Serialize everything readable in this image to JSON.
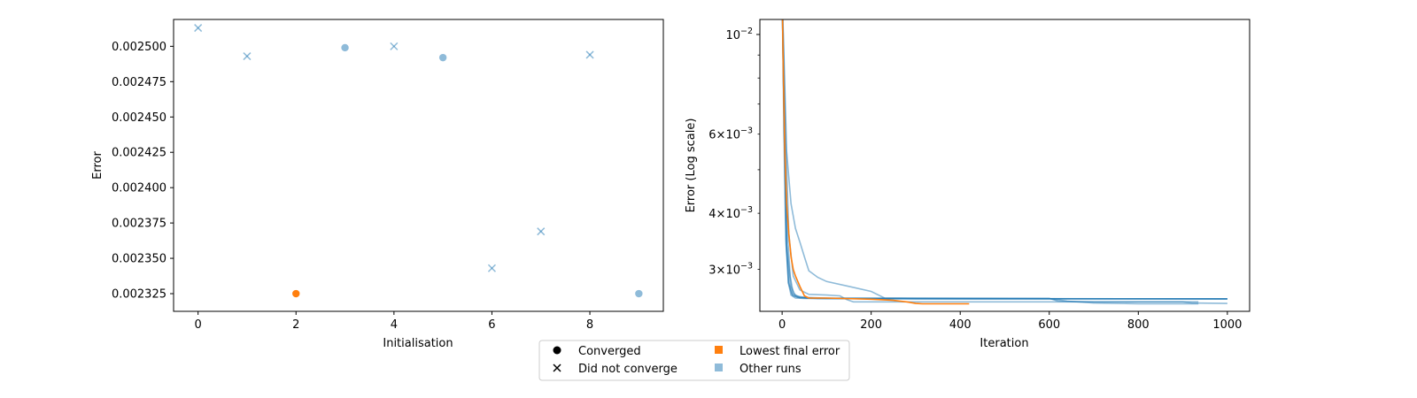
{
  "colors": {
    "highlight": "#ff7f0e",
    "other": "#1f77b4",
    "other_alpha": 0.5
  },
  "chart_data": [
    {
      "type": "scatter",
      "xlabel": "Initialisation",
      "ylabel": "Error",
      "xlim": [
        -0.5,
        9.5
      ],
      "ylim": [
        0.0023125,
        0.002519
      ],
      "xticks": [
        0,
        2,
        4,
        6,
        8
      ],
      "xtick_labels": [
        "0",
        "2",
        "4",
        "6",
        "8"
      ],
      "yticks": [
        0.002325,
        0.00235,
        0.002375,
        0.0024,
        0.002425,
        0.00245,
        0.002475,
        0.0025
      ],
      "ytick_labels": [
        "0.002325",
        "0.002350",
        "0.002375",
        "0.002400",
        "0.002425",
        "0.002450",
        "0.002475",
        "0.002500"
      ],
      "points": [
        {
          "x": 0,
          "y": 0.002513,
          "marker": "x",
          "group": "other"
        },
        {
          "x": 1,
          "y": 0.002493,
          "marker": "x",
          "group": "other"
        },
        {
          "x": 2,
          "y": 0.002325,
          "marker": "o",
          "group": "lowest"
        },
        {
          "x": 3,
          "y": 0.002499,
          "marker": "o",
          "group": "other"
        },
        {
          "x": 4,
          "y": 0.0025,
          "marker": "x",
          "group": "other"
        },
        {
          "x": 5,
          "y": 0.002492,
          "marker": "o",
          "group": "other"
        },
        {
          "x": 6,
          "y": 0.002343,
          "marker": "x",
          "group": "other"
        },
        {
          "x": 7,
          "y": 0.002369,
          "marker": "x",
          "group": "other"
        },
        {
          "x": 8,
          "y": 0.002494,
          "marker": "x",
          "group": "other"
        },
        {
          "x": 9,
          "y": 0.002325,
          "marker": "o",
          "group": "other"
        }
      ]
    },
    {
      "type": "line",
      "xlabel": "Iteration",
      "ylabel": "Error (Log scale)",
      "yscale": "log",
      "xlim": [
        -50,
        1050
      ],
      "ylim": [
        0.00242,
        0.0108
      ],
      "xticks": [
        0,
        200,
        400,
        600,
        800,
        1000
      ],
      "xtick_labels": [
        "0",
        "200",
        "400",
        "600",
        "800",
        "1000"
      ],
      "major_yticks": [
        {
          "value": 0.01,
          "base": "10",
          "exp": "−2"
        }
      ],
      "minor_yticks": [
        {
          "value": 0.003,
          "mant": "3",
          "base": "10",
          "exp": "−3",
          "labeled": true
        },
        {
          "value": 0.004,
          "mant": "4",
          "base": "10",
          "exp": "−3",
          "labeled": true
        },
        {
          "value": 0.005,
          "labeled": false
        },
        {
          "value": 0.006,
          "mant": "6",
          "base": "10",
          "exp": "−3",
          "labeled": true
        },
        {
          "value": 0.007,
          "labeled": false
        },
        {
          "value": 0.008,
          "labeled": false
        },
        {
          "value": 0.009,
          "labeled": false
        }
      ],
      "series": [
        {
          "group": "other",
          "x": [
            0,
            5,
            10,
            14,
            20,
            30,
            50,
            100,
            300,
            1000
          ],
          "y": [
            0.0125,
            0.006,
            0.0034,
            0.0028,
            0.00263,
            0.00259,
            0.002585,
            0.002582,
            0.00258,
            0.00258
          ]
        },
        {
          "group": "other",
          "x": [
            0,
            6,
            12,
            18,
            25,
            40,
            70,
            150,
            500,
            1000
          ],
          "y": [
            0.0125,
            0.0058,
            0.0036,
            0.0029,
            0.00265,
            0.0026,
            0.002588,
            0.002585,
            0.002582,
            0.00258
          ]
        },
        {
          "group": "other",
          "x": [
            0,
            4,
            8,
            14,
            22,
            35,
            60,
            120,
            400,
            1000
          ],
          "y": [
            0.0125,
            0.0062,
            0.0035,
            0.0028,
            0.00264,
            0.0026,
            0.002588,
            0.002584,
            0.002581,
            0.00258
          ]
        },
        {
          "group": "other",
          "x": [
            0,
            5,
            10,
            16,
            24,
            40,
            80,
            200,
            1000
          ],
          "y": [
            0.0125,
            0.0059,
            0.0033,
            0.0028,
            0.00262,
            0.002595,
            0.002586,
            0.002583,
            0.002581
          ]
        },
        {
          "group": "other",
          "x": [
            0,
            5,
            10,
            20,
            30,
            50,
            100,
            400,
            600,
            620,
            700,
            900,
            920,
            1000
          ],
          "y": [
            0.0125,
            0.006,
            0.0034,
            0.00275,
            0.00262,
            0.0026,
            0.00259,
            0.002588,
            0.002585,
            0.00255,
            0.00254,
            0.00254,
            0.002525,
            0.00252
          ]
        },
        {
          "group": "other",
          "x": [
            0,
            8,
            15,
            25,
            40,
            60,
            100,
            130,
            145,
            160,
            300,
            600,
            900,
            935
          ],
          "y": [
            0.0125,
            0.0058,
            0.0036,
            0.0029,
            0.0027,
            0.00264,
            0.00263,
            0.00262,
            0.00257,
            0.00254,
            0.00254,
            0.00254,
            0.00254,
            0.00254
          ]
        },
        {
          "group": "other",
          "x": [
            0,
            10,
            20,
            30,
            40,
            50,
            60,
            80,
            100,
            150,
            200,
            230,
            300,
            600,
            640,
            700,
            800,
            935
          ],
          "y": [
            0.0125,
            0.0055,
            0.0042,
            0.0037,
            0.00345,
            0.0032,
            0.00298,
            0.00288,
            0.00282,
            0.00275,
            0.00268,
            0.00259,
            0.002585,
            0.002583,
            0.00255,
            0.002525,
            0.002515,
            0.002515
          ]
        },
        {
          "group": "lowest",
          "x": [
            0,
            3,
            6,
            10,
            15,
            20,
            25,
            30,
            40,
            50,
            60,
            100,
            200,
            250,
            280,
            300,
            315,
            420
          ],
          "y": [
            0.0125,
            0.008,
            0.0055,
            0.0042,
            0.0036,
            0.0032,
            0.003,
            0.0029,
            0.00275,
            0.00262,
            0.00259,
            0.00259,
            0.002575,
            0.00256,
            0.00254,
            0.00252,
            0.002515,
            0.002515
          ]
        }
      ]
    }
  ],
  "legend": {
    "items": [
      {
        "label": "Converged",
        "marker": "o-black"
      },
      {
        "label": "Did not converge",
        "marker": "x-black"
      },
      {
        "label": "Lowest final error",
        "marker": "sq-orange"
      },
      {
        "label": "Other runs",
        "marker": "sq-blue"
      }
    ]
  }
}
